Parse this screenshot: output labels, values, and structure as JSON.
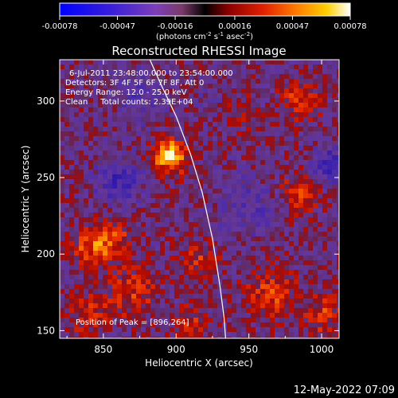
{
  "chart_data": {
    "type": "heatmap",
    "title": "Reconstructed RHESSI Image",
    "xlabel": "Heliocentric X (arcsec)",
    "ylabel": "Heliocentric Y (arcsec)",
    "xlim": [
      820,
      1012
    ],
    "ylim": [
      145,
      327
    ],
    "x_ticks": [
      850,
      900,
      950,
      1000
    ],
    "y_ticks": [
      150,
      200,
      250,
      300
    ],
    "colorbar": {
      "ticks": [
        "-0.00078",
        "-0.00047",
        "-0.00016",
        "0.00016",
        "0.00047",
        "0.00078"
      ],
      "range": [
        -0.00078,
        0.00078
      ],
      "units_main": "(photons cm",
      "units_sup1": "-2",
      "units_mid1": " s",
      "units_sup2": "-1",
      "units_mid2": " asec",
      "units_sup3": "-2",
      "units_end": ")"
    },
    "annotations": {
      "time_range": "6-Jul-2011 23:48:00.000 to 23:54:00.000",
      "detectors": "Detectors: 3F 4F 5F 6F 7F 8F, Att 0",
      "energy_range": "Energy Range: 12.0 - 25.0 keV",
      "method_counts": "Clean     Total counts: 2.39E+04",
      "peak": "Position of Peak = [896,264]"
    },
    "peak": {
      "x": 896,
      "y": 264
    },
    "limb_curve": [
      [
        882,
        327
      ],
      [
        890,
        310
      ],
      [
        900,
        290
      ],
      [
        910,
        265
      ],
      [
        918,
        240
      ],
      [
        925,
        210
      ],
      [
        930,
        180
      ],
      [
        933,
        158
      ],
      [
        934,
        145
      ]
    ],
    "sources": [
      {
        "x": 896,
        "y": 264,
        "amp": 1.0,
        "sigma": 8
      },
      {
        "x": 855,
        "y": 210,
        "amp": 0.55,
        "sigma": 10
      },
      {
        "x": 840,
        "y": 205,
        "amp": 0.45,
        "sigma": 9
      },
      {
        "x": 870,
        "y": 175,
        "amp": 0.45,
        "sigma": 12
      },
      {
        "x": 985,
        "y": 240,
        "amp": 0.45,
        "sigma": 10
      },
      {
        "x": 965,
        "y": 175,
        "amp": 0.5,
        "sigma": 12
      },
      {
        "x": 1000,
        "y": 160,
        "amp": 0.45,
        "sigma": 10
      },
      {
        "x": 985,
        "y": 300,
        "amp": 0.45,
        "sigma": 10
      },
      {
        "x": 940,
        "y": 295,
        "amp": 0.35,
        "sigma": 10
      },
      {
        "x": 915,
        "y": 195,
        "amp": 0.4,
        "sigma": 10
      },
      {
        "x": 840,
        "y": 160,
        "amp": 0.4,
        "sigma": 10
      },
      {
        "x": 910,
        "y": 155,
        "amp": 0.35,
        "sigma": 9
      }
    ],
    "negatives": [
      {
        "x": 860,
        "y": 248,
        "amp": -0.6,
        "sigma": 10
      },
      {
        "x": 1005,
        "y": 258,
        "amp": -0.65,
        "sigma": 8
      },
      {
        "x": 875,
        "y": 305,
        "amp": -0.3,
        "sigma": 12
      },
      {
        "x": 950,
        "y": 230,
        "amp": -0.3,
        "sigma": 14
      },
      {
        "x": 930,
        "y": 300,
        "amp": -0.25,
        "sigma": 10
      }
    ]
  },
  "footer": {
    "timestamp": "12-May-2022 07:09"
  }
}
